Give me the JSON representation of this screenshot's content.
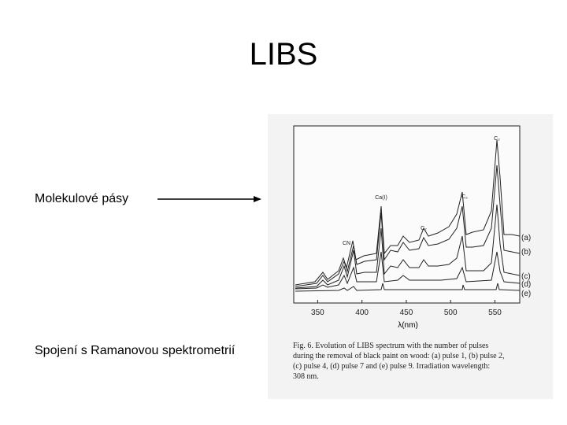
{
  "slide": {
    "title": "LIBS",
    "items": [
      "Molekulové pásy",
      "Spojení s Ramanovou spektrometrií"
    ]
  },
  "figure": {
    "xlim": [
      323,
      578
    ],
    "xticks": [
      350,
      400,
      450,
      500,
      550
    ],
    "xlabel": "λ(nm)",
    "peak_labels": [
      "C₂",
      "Ca(I)",
      "C₂",
      "C₂",
      "CN"
    ],
    "curve_labels": [
      "(a)",
      "(b)",
      "(c)",
      "(d)",
      "(e)"
    ],
    "caption": [
      "Fig. 6. Evolution of LIBS spectrum with the number of pulses",
      "during the removal of black paint on wood: (a) pulse 1, (b) pulse 2,",
      "(c) pulse 4, (d) pulse 7 and (e) pulse 9. Irradiation wavelength:",
      "308 nm."
    ]
  }
}
